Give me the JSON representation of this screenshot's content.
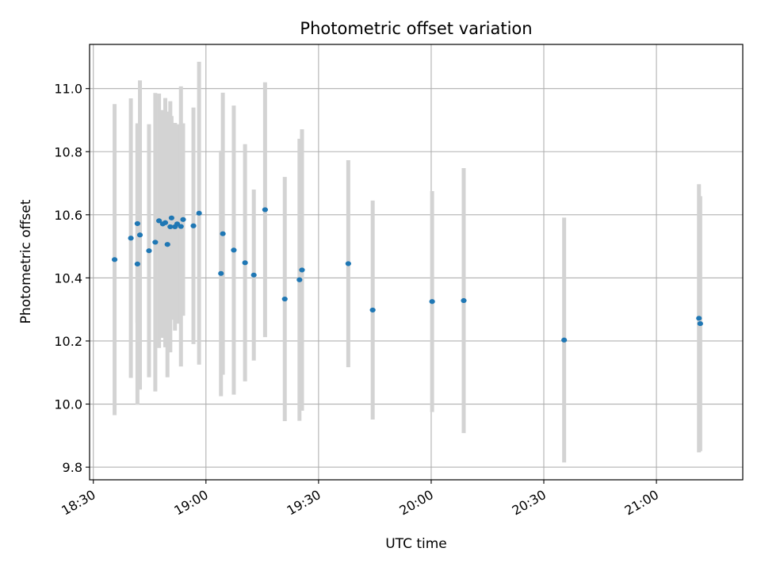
{
  "chart_data": {
    "type": "scatter",
    "title": "Photometric offset variation",
    "xlabel": "UTC time",
    "ylabel": "Photometric offset",
    "xlim": [
      "18:29",
      "21:23"
    ],
    "ylim": [
      9.76,
      11.14
    ],
    "x_ticks": [
      "18:30",
      "19:00",
      "19:30",
      "20:00",
      "20:30",
      "21:00"
    ],
    "y_ticks": [
      "9.8",
      "10.0",
      "10.2",
      "10.4",
      "10.6",
      "10.8",
      "11.0"
    ],
    "grid": true,
    "point_color": "#1f77b4",
    "errorbar_color": "#d3d3d3",
    "series": [
      {
        "points": [
          {
            "t": "18:35:40",
            "y": 10.458,
            "ylo": 9.965,
            "yhi": 10.951
          },
          {
            "t": "18:40:00",
            "y": 10.526,
            "ylo": 10.083,
            "yhi": 10.969
          },
          {
            "t": "18:41:45",
            "y": 10.572,
            "ylo": 10.257,
            "yhi": 10.887
          },
          {
            "t": "18:41:45",
            "y": 10.444,
            "ylo": 9.998,
            "yhi": 10.89
          },
          {
            "t": "18:42:25",
            "y": 10.536,
            "ylo": 10.046,
            "yhi": 11.026
          },
          {
            "t": "18:44:50",
            "y": 10.486,
            "ylo": 10.085,
            "yhi": 10.887
          },
          {
            "t": "18:46:30",
            "y": 10.513,
            "ylo": 10.04,
            "yhi": 10.986
          },
          {
            "t": "18:47:30",
            "y": 10.581,
            "ylo": 10.178,
            "yhi": 10.984
          },
          {
            "t": "18:48:30",
            "y": 10.571,
            "ylo": 10.21,
            "yhi": 10.932
          },
          {
            "t": "18:49:10",
            "y": 10.575,
            "ylo": 10.18,
            "yhi": 10.97
          },
          {
            "t": "18:49:45",
            "y": 10.506,
            "ylo": 10.085,
            "yhi": 10.927
          },
          {
            "t": "18:50:30",
            "y": 10.562,
            "ylo": 10.164,
            "yhi": 10.96
          },
          {
            "t": "18:50:50",
            "y": 10.59,
            "ylo": 10.267,
            "yhi": 10.913
          },
          {
            "t": "18:51:45",
            "y": 10.562,
            "ylo": 10.233,
            "yhi": 10.891
          },
          {
            "t": "18:52:20",
            "y": 10.571,
            "ylo": 10.255,
            "yhi": 10.887
          },
          {
            "t": "18:53:20",
            "y": 10.563,
            "ylo": 10.119,
            "yhi": 11.007
          },
          {
            "t": "18:53:55",
            "y": 10.585,
            "ylo": 10.28,
            "yhi": 10.89
          },
          {
            "t": "18:56:40",
            "y": 10.565,
            "ylo": 10.19,
            "yhi": 10.94
          },
          {
            "t": "18:58:10",
            "y": 10.605,
            "ylo": 10.125,
            "yhi": 11.085
          },
          {
            "t": "19:04:00",
            "y": 10.414,
            "ylo": 10.025,
            "yhi": 10.803
          },
          {
            "t": "19:04:30",
            "y": 10.54,
            "ylo": 10.093,
            "yhi": 10.987
          },
          {
            "t": "19:07:25",
            "y": 10.488,
            "ylo": 10.03,
            "yhi": 10.946
          },
          {
            "t": "19:10:25",
            "y": 10.448,
            "ylo": 10.072,
            "yhi": 10.824
          },
          {
            "t": "19:12:45",
            "y": 10.409,
            "ylo": 10.138,
            "yhi": 10.68
          },
          {
            "t": "19:15:45",
            "y": 10.616,
            "ylo": 10.212,
            "yhi": 11.02
          },
          {
            "t": "19:21:00",
            "y": 10.333,
            "ylo": 9.946,
            "yhi": 10.72
          },
          {
            "t": "19:24:55",
            "y": 10.394,
            "ylo": 9.947,
            "yhi": 10.841
          },
          {
            "t": "19:25:35",
            "y": 10.425,
            "ylo": 9.979,
            "yhi": 10.871
          },
          {
            "t": "19:37:55",
            "y": 10.445,
            "ylo": 10.117,
            "yhi": 10.773
          },
          {
            "t": "19:44:25",
            "y": 10.298,
            "ylo": 9.951,
            "yhi": 10.645
          },
          {
            "t": "20:00:15",
            "y": 10.325,
            "ylo": 9.975,
            "yhi": 10.675
          },
          {
            "t": "20:08:40",
            "y": 10.328,
            "ylo": 9.908,
            "yhi": 10.748
          },
          {
            "t": "20:35:25",
            "y": 10.203,
            "ylo": 9.815,
            "yhi": 10.591
          },
          {
            "t": "21:11:20",
            "y": 10.272,
            "ylo": 9.847,
            "yhi": 10.697
          },
          {
            "t": "21:11:40",
            "y": 10.255,
            "ylo": 9.851,
            "yhi": 10.659
          }
        ]
      }
    ]
  }
}
